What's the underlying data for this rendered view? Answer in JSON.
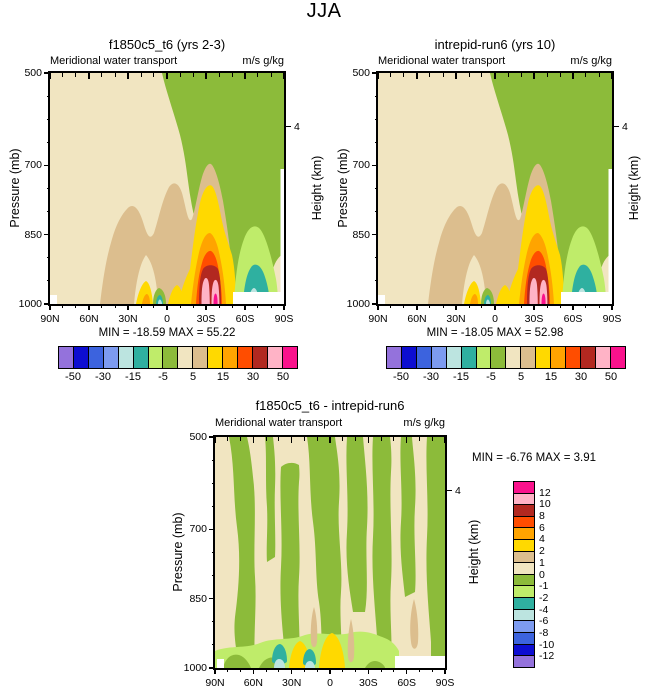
{
  "main_title": "JJA",
  "palette": [
    "#9472DC",
    "#0D0DD1",
    "#3C63DE",
    "#7D9BF0",
    "#BCE4E0",
    "#2FB0A0",
    "#BFEC6A",
    "#8CBB3A",
    "#F1E5C1",
    "#DCBE8E",
    "#FFD900",
    "#FFA400",
    "#FF4D00",
    "#B22820",
    "#FFB3C6",
    "#FA128C"
  ],
  "axes": {
    "x_labels": [
      "90N",
      "60N",
      "30N",
      "0",
      "30S",
      "60S",
      "90S"
    ],
    "y_labels": [
      "500",
      "700",
      "850",
      "1000"
    ],
    "y_axis_label": "Pressure (mb)",
    "y_axis_right_label": "Height (km)",
    "right_tick_label": "4"
  },
  "panels": {
    "top_left": {
      "title": "f1850c5_t6 (yrs 2-3)",
      "subtitle_left": "Meridional water transport",
      "subtitle_right": "m/s g/kg",
      "minmax": "MIN = -18.59  MAX =  55.22",
      "colorbar_labels": [
        "-50",
        "-30",
        "-15",
        "-5",
        "5",
        "15",
        "30",
        "50"
      ]
    },
    "top_right": {
      "title": "intrepid-run6 (yrs 10)",
      "subtitle_left": "Meridional water transport",
      "subtitle_right": "m/s g/kg",
      "minmax": "MIN = -18.05  MAX =  52.98",
      "colorbar_labels": [
        "-50",
        "-30",
        "-15",
        "-5",
        "5",
        "15",
        "30",
        "50"
      ]
    },
    "bottom": {
      "title": "f1850c5_t6 - intrepid-run6",
      "subtitle_left": "Meridional water transport",
      "subtitle_right": "m/s g/kg",
      "minmax": "MIN =  -6.76  MAX =   3.91",
      "colorbar_labels": [
        "12",
        "10",
        "8",
        "6",
        "4",
        "2",
        "1",
        "0",
        "-1",
        "-2",
        "-4",
        "-6",
        "-8",
        "-10",
        "-12"
      ]
    }
  },
  "chart_data": [
    {
      "type": "heatmap",
      "subtype": "filled-contour-latitude-pressure-section",
      "title": "f1850c5_t6 (yrs 2-3)",
      "field": "Meridional water transport",
      "units": "m/s g/kg",
      "season": "JJA",
      "x_ticks": [
        "90N",
        "60N",
        "30N",
        "0",
        "30S",
        "60S",
        "90S"
      ],
      "y_ticks_pressure_mb": [
        500,
        700,
        850,
        1000
      ],
      "y_axis_label": "Pressure (mb)",
      "secondary_y_axis_label": "Height (km)",
      "secondary_y_ticks_km": [
        4
      ],
      "min": -18.59,
      "max": 55.22,
      "colorbar_orientation": "horizontal",
      "colorbar_tick_labels": [
        -50,
        -30,
        -15,
        -5,
        5,
        15,
        30,
        50
      ]
    },
    {
      "type": "heatmap",
      "subtype": "filled-contour-latitude-pressure-section",
      "title": "intrepid-run6 (yrs 10)",
      "field": "Meridional water transport",
      "units": "m/s g/kg",
      "season": "JJA",
      "x_ticks": [
        "90N",
        "60N",
        "30N",
        "0",
        "30S",
        "60S",
        "90S"
      ],
      "y_ticks_pressure_mb": [
        500,
        700,
        850,
        1000
      ],
      "y_axis_label": "Pressure (mb)",
      "secondary_y_axis_label": "Height (km)",
      "secondary_y_ticks_km": [
        4
      ],
      "min": -18.05,
      "max": 52.98,
      "colorbar_orientation": "horizontal",
      "colorbar_tick_labels": [
        -50,
        -30,
        -15,
        -5,
        5,
        15,
        30,
        50
      ]
    },
    {
      "type": "heatmap",
      "subtype": "filled-contour-difference-latitude-pressure-section",
      "title": "f1850c5_t6 - intrepid-run6",
      "field": "Meridional water transport",
      "units": "m/s g/kg",
      "season": "JJA",
      "x_ticks": [
        "90N",
        "60N",
        "30N",
        "0",
        "30S",
        "60S",
        "90S"
      ],
      "y_ticks_pressure_mb": [
        500,
        700,
        850,
        1000
      ],
      "y_axis_label": "Pressure (mb)",
      "secondary_y_axis_label": "Height (km)",
      "secondary_y_ticks_km": [
        4
      ],
      "min": -6.76,
      "max": 3.91,
      "colorbar_orientation": "vertical",
      "colorbar_tick_labels": [
        12,
        10,
        8,
        6,
        4,
        2,
        1,
        0,
        -1,
        -2,
        -4,
        -6,
        -8,
        -10,
        -12
      ]
    }
  ]
}
